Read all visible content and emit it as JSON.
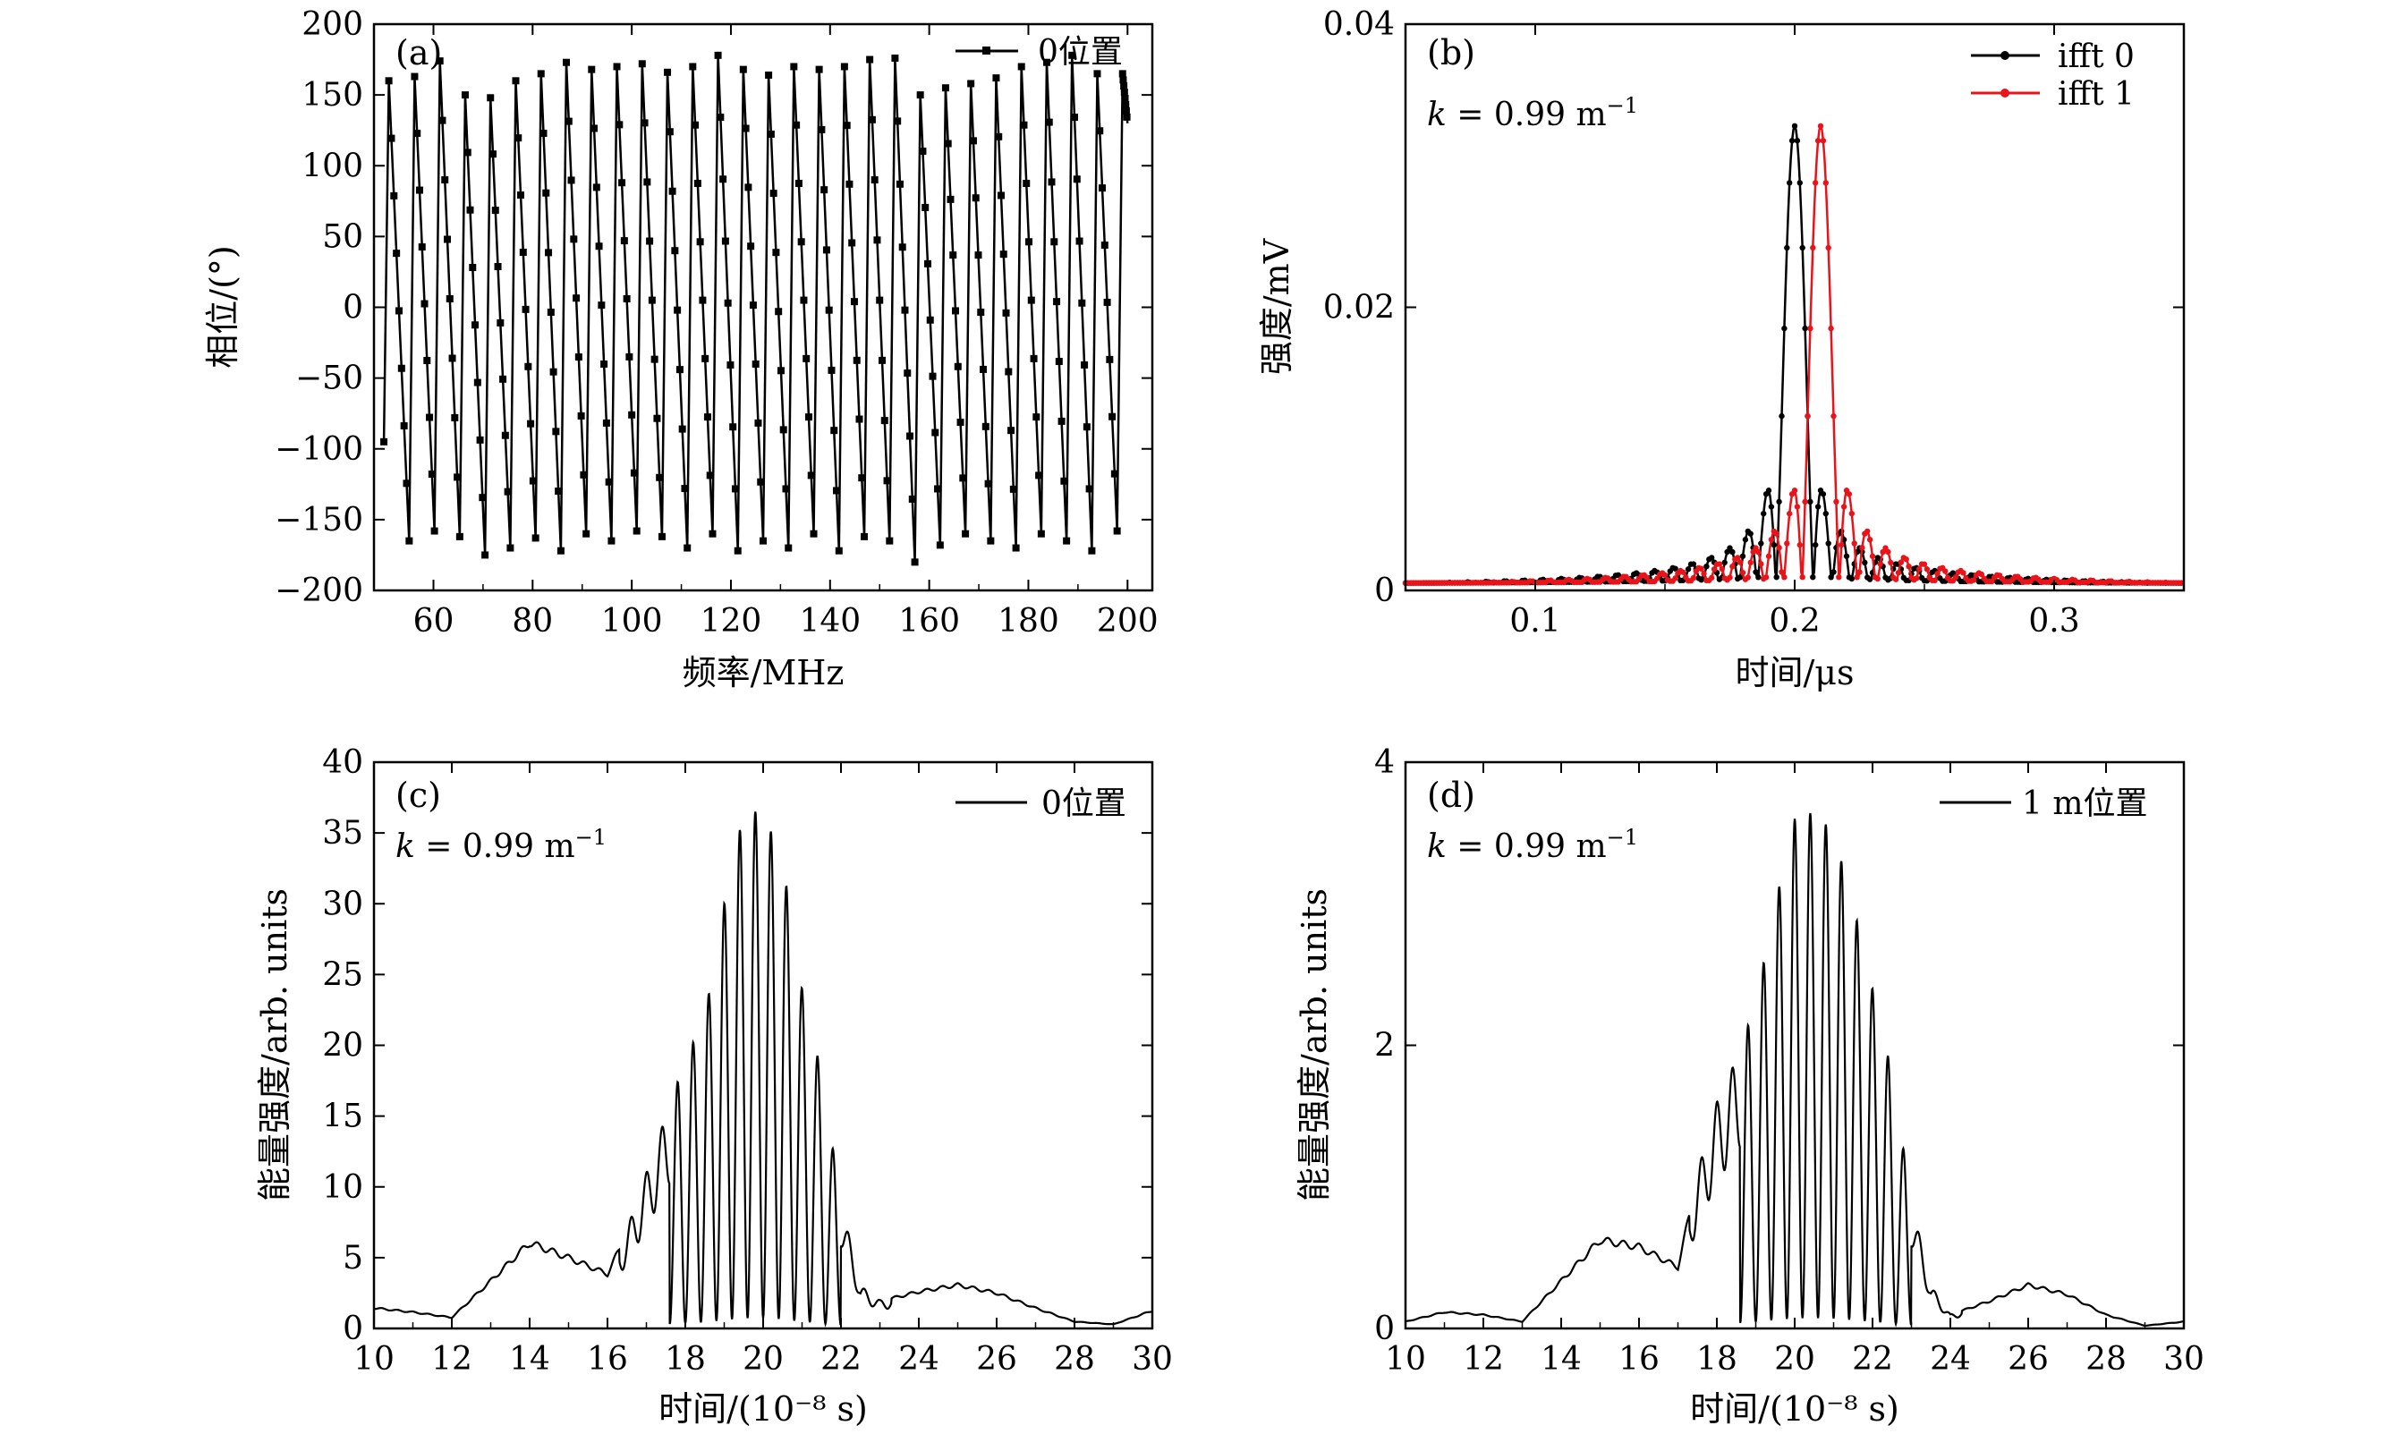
{
  "chart_data": [
    {
      "panel": "(a)",
      "type": "line",
      "xlabel": "频率/MHz",
      "ylabel": "相位/(°)",
      "xlim": [
        48,
        205
      ],
      "ylim": [
        -200,
        200
      ],
      "xticks": [
        60,
        80,
        100,
        120,
        140,
        160,
        180,
        200
      ],
      "yticks": [
        -200,
        -150,
        -100,
        -50,
        0,
        50,
        100,
        150,
        200
      ],
      "tick_labels_x": [
        "60",
        "80",
        "100",
        "120",
        "140",
        "160",
        "180",
        "200"
      ],
      "tick_labels_y": [
        "−200",
        "−150",
        "−100",
        "−50",
        "0",
        "50",
        "100",
        "150",
        "200"
      ],
      "legend": {
        "position": "top-right",
        "entries": [
          "0位置"
        ]
      },
      "marker": "square",
      "series": [
        {
          "name": "0位置",
          "description": "sawtooth phase wrapping, period ~5.1 MHz, ~30 cycles between 50 and 200 MHz",
          "x": [
            50,
            51,
            55.1,
            56.2,
            60.2,
            61.3,
            65.3,
            66.4,
            70.4,
            71.5,
            75.5,
            76.6,
            80.6,
            81.7,
            85.7,
            86.8,
            90.8,
            91.9,
            95.9,
            97,
            101,
            102.1,
            106.1,
            107.2,
            111.2,
            112.3,
            116.3,
            117.4,
            121.4,
            122.5,
            126.5,
            127.6,
            131.6,
            132.7,
            136.7,
            137.8,
            141.8,
            142.9,
            146.9,
            148,
            152,
            153.1,
            157.1,
            158.2,
            162.2,
            163.3,
            167.3,
            168.4,
            172.4,
            173.5,
            177.5,
            178.6,
            182.6,
            183.7,
            187.7,
            188.8,
            192.8,
            193.9,
            197.9,
            199,
            200
          ],
          "y": [
            -95,
            160,
            -165,
            163,
            -158,
            174,
            -162,
            150,
            -175,
            148,
            -170,
            160,
            -163,
            165,
            -172,
            173,
            -160,
            168,
            -165,
            170,
            -158,
            172,
            -162,
            166,
            -170,
            170,
            -160,
            178,
            -172,
            168,
            -165,
            164,
            -170,
            170,
            -160,
            168,
            -172,
            170,
            -162,
            175,
            -165,
            176,
            -180,
            150,
            -168,
            155,
            -160,
            158,
            -165,
            162,
            -170,
            170,
            -160,
            173,
            -165,
            178,
            -172,
            165,
            -158,
            165,
            130
          ]
        }
      ]
    },
    {
      "panel": "(b)",
      "type": "line",
      "xlabel": "时间/μs",
      "ylabel": "强度/mV",
      "annotation": "k = 0.99 m⁻¹",
      "xlim": [
        0.05,
        0.35
      ],
      "ylim": [
        0,
        0.04
      ],
      "xticks": [
        0.1,
        0.2,
        0.3
      ],
      "yticks": [
        0,
        0.02,
        0.04
      ],
      "tick_labels_x": [
        "0.1",
        "0.2",
        "0.3"
      ],
      "tick_labels_y": [
        "0",
        "0.02",
        "0.04"
      ],
      "legend": {
        "position": "top-right",
        "entries": [
          "ifft 0",
          "ifft 1"
        ]
      },
      "colors": {
        "ifft 0": "#000000",
        "ifft 1": "#e8141a"
      },
      "series": [
        {
          "name": "ifft 0",
          "peak_x": 0.2,
          "peak_y": 0.0328,
          "sidelobes": [
            [
              0.193,
              0.0085
            ],
            [
              0.207,
              0.0088
            ],
            [
              0.186,
              0.0035
            ],
            [
              0.214,
              0.0035
            ]
          ]
        },
        {
          "name": "ifft 1",
          "peak_x": 0.21,
          "peak_y": 0.0328,
          "sidelobes": [
            [
              0.203,
              0.0085
            ],
            [
              0.217,
              0.0088
            ],
            [
              0.196,
              0.0035
            ],
            [
              0.224,
              0.0043
            ]
          ]
        }
      ]
    },
    {
      "panel": "(c)",
      "type": "line",
      "xlabel": "时间/(10⁻⁸ s)",
      "ylabel": "能量强度/arb. units",
      "annotation": "k = 0.99 m⁻¹",
      "xlim": [
        10,
        30
      ],
      "ylim": [
        0,
        40
      ],
      "xticks": [
        10,
        12,
        14,
        16,
        18,
        20,
        22,
        24,
        26,
        28,
        30
      ],
      "yticks": [
        0,
        5,
        10,
        15,
        20,
        25,
        30,
        35,
        40
      ],
      "tick_labels_x": [
        "10",
        "12",
        "14",
        "16",
        "18",
        "20",
        "22",
        "24",
        "26",
        "28",
        "30"
      ],
      "tick_labels_y": [
        "0",
        "5",
        "10",
        "15",
        "20",
        "25",
        "30",
        "35",
        "40"
      ],
      "legend": {
        "position": "top-right",
        "entries": [
          "0位置"
        ]
      },
      "series": [
        {
          "name": "0位置",
          "envelope_x": [
            10,
            11,
            12,
            13,
            14,
            15,
            16,
            16.5,
            17,
            17.5,
            18,
            18.5,
            19,
            19.5,
            20,
            20.5,
            21,
            21.5,
            22,
            22.5,
            23,
            24,
            25,
            26,
            27,
            28,
            29,
            30
          ],
          "envelope_y": [
            1.5,
            1.2,
            0.8,
            3.5,
            6.3,
            5.2,
            4,
            7,
            11,
            15,
            19,
            22,
            30,
            36.5,
            36.5,
            33,
            24,
            18,
            9,
            3,
            2,
            2.7,
            3.2,
            2.6,
            1.5,
            0.5,
            0.3,
            1.3
          ],
          "oscillation_period": 0.4
        }
      ]
    },
    {
      "panel": "(d)",
      "type": "line",
      "xlabel": "时间/(10⁻⁸ s)",
      "ylabel": "能量强度/arb. units",
      "annotation": "k = 0.99 m⁻¹",
      "xlim": [
        10,
        30
      ],
      "ylim": [
        0,
        4
      ],
      "xticks": [
        10,
        12,
        14,
        16,
        18,
        20,
        22,
        24,
        26,
        28,
        30
      ],
      "yticks": [
        0,
        2,
        4
      ],
      "tick_labels_x": [
        "10",
        "12",
        "14",
        "16",
        "18",
        "20",
        "22",
        "24",
        "26",
        "28",
        "30"
      ],
      "tick_labels_y": [
        "0",
        "2",
        "4"
      ],
      "legend": {
        "position": "top-right",
        "entries": [
          "1 m位置"
        ]
      },
      "series": [
        {
          "name": "1 m位置",
          "envelope_x": [
            10,
            11,
            12,
            13,
            14,
            15,
            16,
            17,
            17.5,
            18,
            18.5,
            19,
            19.5,
            20,
            20.5,
            21,
            21.5,
            22,
            22.5,
            23,
            23.5,
            24,
            25,
            26,
            27,
            28,
            29,
            30
          ],
          "envelope_y": [
            0.05,
            0.12,
            0.1,
            0.05,
            0.35,
            0.65,
            0.6,
            0.45,
            1.1,
            1.6,
            1.9,
            2.3,
            3,
            3.6,
            3.65,
            3.5,
            3,
            2.4,
            1.8,
            0.9,
            0.3,
            0.1,
            0.2,
            0.32,
            0.25,
            0.1,
            0.02,
            0.05
          ],
          "oscillation_period": 0.4
        }
      ]
    }
  ]
}
